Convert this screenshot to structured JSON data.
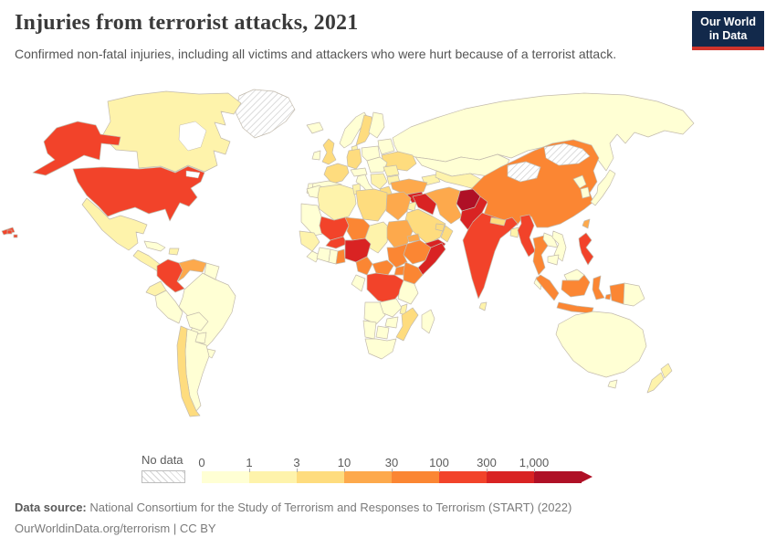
{
  "header": {
    "title": "Injuries from terrorist attacks, 2021",
    "subtitle": "Confirmed non-fatal injuries, including all victims and attackers who were hurt because of a terrorist attack."
  },
  "logo": {
    "line1": "Our World",
    "line2": "in Data",
    "bg_color": "#12294B",
    "accent_color": "#D0342C"
  },
  "legend": {
    "no_data_label": "No data",
    "ticks": [
      "0",
      "1",
      "3",
      "10",
      "30",
      "100",
      "300",
      "1,000"
    ]
  },
  "footer": {
    "source_label": "Data source:",
    "source_text": " National Consortium for the Study of Terrorism and Responses to Terrorism (START) (2022)",
    "link_text": "OurWorldinData.org/terrorism | CC BY"
  },
  "chart_data": {
    "type": "choropleth",
    "title": "Injuries from terrorist attacks",
    "year": 2021,
    "unit": "injuries",
    "scale": "log bins",
    "bins": [
      "0-1",
      "1-3",
      "3-10",
      "10-30",
      "30-100",
      "100-300",
      "300-1000",
      "1000+"
    ],
    "bin_colors": [
      "#FFFFD4",
      "#FEF3AB",
      "#FEDC7E",
      "#FDA94C",
      "#FB8633",
      "#F2432A",
      "#D92323",
      "#AF1026"
    ],
    "no_data_style": "white with gray diagonal hatching",
    "countries": [
      {
        "id": "usa",
        "name": "United States",
        "bin": 5
      },
      {
        "id": "canada",
        "name": "Canada",
        "bin": 1
      },
      {
        "id": "greenland",
        "name": "Greenland",
        "bin": "no_data"
      },
      {
        "id": "mexico",
        "name": "Mexico",
        "bin": 1
      },
      {
        "id": "central-america",
        "name": "Central America",
        "bin": 1
      },
      {
        "id": "cuba",
        "name": "Cuba",
        "bin": 0
      },
      {
        "id": "hispaniola",
        "name": "Haiti & Dominican Republic",
        "bin": 1
      },
      {
        "id": "colombia",
        "name": "Colombia",
        "bin": 5
      },
      {
        "id": "venezuela",
        "name": "Venezuela",
        "bin": 3
      },
      {
        "id": "guyanas",
        "name": "Guyana & Suriname",
        "bin": 0
      },
      {
        "id": "ecuador",
        "name": "Ecuador",
        "bin": 1
      },
      {
        "id": "peru",
        "name": "Peru",
        "bin": 0
      },
      {
        "id": "brazil",
        "name": "Brazil",
        "bin": 0
      },
      {
        "id": "bolivia",
        "name": "Bolivia",
        "bin": 0
      },
      {
        "id": "paraguay",
        "name": "Paraguay",
        "bin": 0
      },
      {
        "id": "chile",
        "name": "Chile",
        "bin": 2
      },
      {
        "id": "argentina",
        "name": "Argentina",
        "bin": 0
      },
      {
        "id": "uruguay",
        "name": "Uruguay",
        "bin": 0
      },
      {
        "id": "iceland",
        "name": "Iceland",
        "bin": 0
      },
      {
        "id": "norway",
        "name": "Norway",
        "bin": 0
      },
      {
        "id": "sweden",
        "name": "Sweden",
        "bin": 2
      },
      {
        "id": "finland",
        "name": "Finland",
        "bin": 0
      },
      {
        "id": "denmark",
        "name": "Denmark",
        "bin": 1
      },
      {
        "id": "uk",
        "name": "United Kingdom",
        "bin": 2
      },
      {
        "id": "ireland",
        "name": "Ireland",
        "bin": 0
      },
      {
        "id": "france",
        "name": "France",
        "bin": 2
      },
      {
        "id": "spain",
        "name": "Spain",
        "bin": 0
      },
      {
        "id": "portugal",
        "name": "Portugal",
        "bin": 0
      },
      {
        "id": "germany",
        "name": "Germany",
        "bin": 2
      },
      {
        "id": "italy",
        "name": "Italy",
        "bin": 0
      },
      {
        "id": "switzerland-austria",
        "name": "Switzerland & Austria",
        "bin": 0
      },
      {
        "id": "poland",
        "name": "Poland",
        "bin": 0
      },
      {
        "id": "east-europe",
        "name": "Czechia, Slovakia & Hungary",
        "bin": 0
      },
      {
        "id": "balkans",
        "name": "Balkans",
        "bin": 1
      },
      {
        "id": "romania",
        "name": "Romania",
        "bin": 1
      },
      {
        "id": "bulgaria",
        "name": "Bulgaria",
        "bin": 1
      },
      {
        "id": "greece",
        "name": "Greece",
        "bin": 2
      },
      {
        "id": "belarus-baltics",
        "name": "Belarus & Baltic states",
        "bin": 0
      },
      {
        "id": "ukraine",
        "name": "Ukraine",
        "bin": 2
      },
      {
        "id": "russia",
        "name": "Russia",
        "bin": 0
      },
      {
        "id": "caucasus",
        "name": "Georgia, Armenia & Azerbaijan",
        "bin": 1
      },
      {
        "id": "kazakhstan",
        "name": "Kazakhstan",
        "bin": 0
      },
      {
        "id": "uzbekistan-turkmenistan",
        "name": "Uzbekistan & Turkmenistan",
        "bin": 1
      },
      {
        "id": "kyrgyzstan-tajikistan",
        "name": "Kyrgyzstan & Tajikistan",
        "bin": "no_data"
      },
      {
        "id": "turkey",
        "name": "Turkey",
        "bin": 3
      },
      {
        "id": "syria",
        "name": "Syria",
        "bin": 6
      },
      {
        "id": "israel",
        "name": "Israel",
        "bin": 6
      },
      {
        "id": "jordan",
        "name": "Jordan",
        "bin": 1
      },
      {
        "id": "iraq",
        "name": "Iraq",
        "bin": 6
      },
      {
        "id": "saudi-arabia",
        "name": "Saudi Arabia",
        "bin": 2
      },
      {
        "id": "yemen",
        "name": "Yemen",
        "bin": 6
      },
      {
        "id": "oman",
        "name": "Oman",
        "bin": 2
      },
      {
        "id": "uae",
        "name": "United Arab Emirates",
        "bin": 2
      },
      {
        "id": "iran",
        "name": "Iran",
        "bin": 3
      },
      {
        "id": "afghanistan",
        "name": "Afghanistan",
        "bin": 7
      },
      {
        "id": "pakistan",
        "name": "Pakistan",
        "bin": 6
      },
      {
        "id": "india",
        "name": "India",
        "bin": 5
      },
      {
        "id": "nepal",
        "name": "Nepal",
        "bin": 2
      },
      {
        "id": "bangladesh",
        "name": "Bangladesh",
        "bin": 1
      },
      {
        "id": "sri-lanka",
        "name": "Sri Lanka",
        "bin": 1
      },
      {
        "id": "myanmar",
        "name": "Myanmar",
        "bin": 5
      },
      {
        "id": "thailand",
        "name": "Thailand",
        "bin": 4
      },
      {
        "id": "laos",
        "name": "Laos",
        "bin": 0
      },
      {
        "id": "vietnam",
        "name": "Vietnam",
        "bin": 0
      },
      {
        "id": "cambodia",
        "name": "Cambodia",
        "bin": 0
      },
      {
        "id": "malaysia",
        "name": "Malaysia",
        "bin": 0
      },
      {
        "id": "china",
        "name": "China",
        "bin": 4
      },
      {
        "id": "mongolia",
        "name": "Mongolia",
        "bin": "no_data"
      },
      {
        "id": "north-korea",
        "name": "North Korea",
        "bin": 0
      },
      {
        "id": "south-korea",
        "name": "South Korea",
        "bin": 0
      },
      {
        "id": "japan",
        "name": "Japan",
        "bin": 0
      },
      {
        "id": "taiwan",
        "name": "Taiwan",
        "bin": 3
      },
      {
        "id": "philippines",
        "name": "Philippines",
        "bin": 5
      },
      {
        "id": "indonesia",
        "name": "Indonesia",
        "bin": 4
      },
      {
        "id": "png",
        "name": "Papua New Guinea",
        "bin": 0
      },
      {
        "id": "australia",
        "name": "Australia",
        "bin": 0
      },
      {
        "id": "new-zealand",
        "name": "New Zealand",
        "bin": 1
      },
      {
        "id": "morocco",
        "name": "Morocco",
        "bin": 0
      },
      {
        "id": "algeria",
        "name": "Algeria",
        "bin": 1
      },
      {
        "id": "tunisia",
        "name": "Tunisia",
        "bin": 1
      },
      {
        "id": "libya",
        "name": "Libya",
        "bin": 2
      },
      {
        "id": "egypt",
        "name": "Egypt",
        "bin": 3
      },
      {
        "id": "mauritania",
        "name": "Mauritania & Western Sahara",
        "bin": 0
      },
      {
        "id": "senegal-guinea",
        "name": "Senegal & Guinea",
        "bin": 1
      },
      {
        "id": "sierra-leone-liberia",
        "name": "Sierra Leone & Liberia",
        "bin": 0
      },
      {
        "id": "mali",
        "name": "Mali",
        "bin": 5
      },
      {
        "id": "burkina-faso",
        "name": "Burkina Faso",
        "bin": 5
      },
      {
        "id": "ivory-coast",
        "name": "Cote d'Ivoire",
        "bin": 0
      },
      {
        "id": "ghana",
        "name": "Ghana",
        "bin": 0
      },
      {
        "id": "togo-benin",
        "name": "Togo & Benin",
        "bin": 4
      },
      {
        "id": "niger",
        "name": "Niger",
        "bin": 4
      },
      {
        "id": "nigeria",
        "name": "Nigeria",
        "bin": 6
      },
      {
        "id": "chad",
        "name": "Chad",
        "bin": 1
      },
      {
        "id": "sudan",
        "name": "Sudan",
        "bin": 3
      },
      {
        "id": "eritrea",
        "name": "Eritrea",
        "bin": 3
      },
      {
        "id": "ethiopia",
        "name": "Ethiopia",
        "bin": 4
      },
      {
        "id": "somalia",
        "name": "Somalia",
        "bin": 6
      },
      {
        "id": "cameroon",
        "name": "Cameroon",
        "bin": 4
      },
      {
        "id": "car",
        "name": "Central African Republic",
        "bin": 4
      },
      {
        "id": "south-sudan",
        "name": "South Sudan",
        "bin": 4
      },
      {
        "id": "gabon-congo",
        "name": "Gabon & Congo",
        "bin": 0
      },
      {
        "id": "uganda",
        "name": "Uganda",
        "bin": 4
      },
      {
        "id": "kenya",
        "name": "Kenya",
        "bin": 4
      },
      {
        "id": "drc",
        "name": "Democratic Republic of Congo",
        "bin": 5
      },
      {
        "id": "tanzania",
        "name": "Tanzania",
        "bin": 0
      },
      {
        "id": "angola",
        "name": "Angola",
        "bin": 0
      },
      {
        "id": "zambia",
        "name": "Zambia",
        "bin": 0
      },
      {
        "id": "malawi",
        "name": "Malawi",
        "bin": 1
      },
      {
        "id": "mozambique",
        "name": "Mozambique",
        "bin": 2
      },
      {
        "id": "zimbabwe",
        "name": "Zimbabwe",
        "bin": 0
      },
      {
        "id": "botswana",
        "name": "Botswana",
        "bin": 0
      },
      {
        "id": "namibia",
        "name": "Namibia",
        "bin": 0
      },
      {
        "id": "south-africa",
        "name": "South Africa",
        "bin": 0
      },
      {
        "id": "madagascar",
        "name": "Madagascar",
        "bin": 0
      }
    ]
  }
}
